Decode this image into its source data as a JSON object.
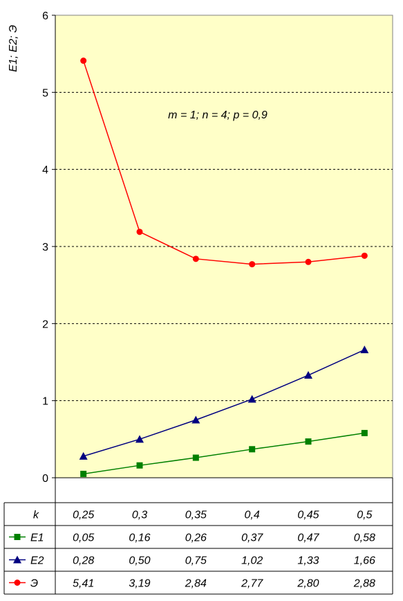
{
  "chart_data": {
    "type": "line",
    "ylabel": "E1; E2; Э",
    "annotation": "m = 1; n = 4; p = 0,9",
    "ylim": [
      0,
      6
    ],
    "yticks": [
      "0",
      "1",
      "2",
      "3",
      "4",
      "5",
      "6"
    ],
    "grid": true,
    "legend_placement": "table-left",
    "plot_background": "#ffffc8",
    "table_header": "k",
    "categories": [
      "0,25",
      "0,3",
      "0,35",
      "0,4",
      "0,45",
      "0,5"
    ],
    "x": [
      0.25,
      0.3,
      0.35,
      0.4,
      0.45,
      0.5
    ],
    "series": [
      {
        "name": "E1",
        "color": "#008000",
        "marker": "square",
        "values": [
          0.05,
          0.16,
          0.26,
          0.37,
          0.47,
          0.58
        ],
        "labels": [
          "0,05",
          "0,16",
          "0,26",
          "0,37",
          "0,47",
          "0,58"
        ]
      },
      {
        "name": "E2",
        "color": "#000080",
        "marker": "triangle",
        "values": [
          0.28,
          0.5,
          0.75,
          1.02,
          1.33,
          1.66
        ],
        "labels": [
          "0,28",
          "0,50",
          "0,75",
          "1,02",
          "1,33",
          "1,66"
        ]
      },
      {
        "name": "Э",
        "color": "#ff0000",
        "marker": "circle",
        "values": [
          5.41,
          3.19,
          2.84,
          2.77,
          2.8,
          2.88
        ],
        "labels": [
          "5,41",
          "3,19",
          "2,84",
          "2,77",
          "2,80",
          "2,88"
        ]
      }
    ]
  }
}
